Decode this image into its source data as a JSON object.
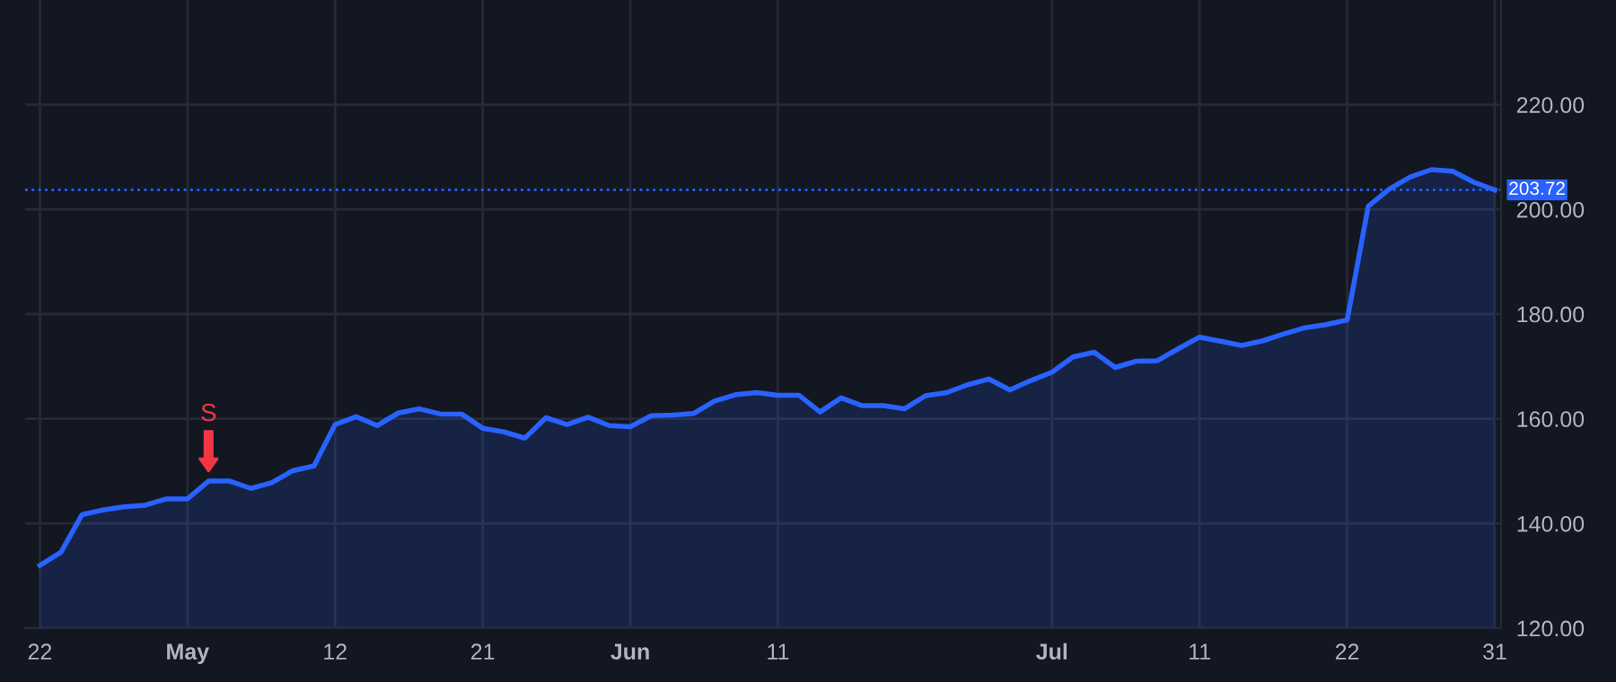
{
  "chart_data": {
    "type": "area",
    "categories": [
      "22",
      null,
      null,
      null,
      null,
      null,
      null,
      "May",
      null,
      null,
      null,
      null,
      null,
      null,
      "12",
      null,
      null,
      null,
      null,
      null,
      null,
      "21",
      null,
      null,
      null,
      null,
      null,
      null,
      "Jun",
      null,
      null,
      null,
      null,
      null,
      null,
      "11",
      null,
      null,
      null,
      null,
      null,
      null,
      null,
      null,
      null,
      null,
      null,
      null,
      "Jul",
      null,
      null,
      null,
      null,
      null,
      null,
      "11",
      null,
      null,
      null,
      null,
      null,
      null,
      "22",
      null,
      null,
      null,
      null,
      null,
      null,
      "31"
    ],
    "series": [
      {
        "color": "#2962ff",
        "values": [
          132.0,
          134.5,
          141.7,
          142.6,
          143.2,
          143.5,
          144.7,
          144.7,
          148.1,
          148.1,
          146.7,
          147.8,
          150.1,
          151.0,
          158.9,
          160.4,
          158.7,
          161.1,
          161.9,
          160.9,
          160.9,
          158.2,
          157.5,
          156.3,
          160.2,
          158.9,
          160.3,
          158.7,
          158.5,
          160.6,
          160.7,
          161.0,
          163.4,
          164.6,
          165.0,
          164.5,
          164.5,
          161.3,
          164.0,
          162.5,
          162.5,
          161.9,
          164.4,
          165.0,
          166.5,
          167.6,
          165.5,
          167.3,
          168.9,
          171.8,
          172.7,
          169.8,
          171.0,
          171.1,
          173.4,
          175.6,
          174.8,
          174.0,
          174.9,
          176.2,
          177.4,
          178.0,
          178.9,
          200.6,
          203.9,
          206.2,
          207.6,
          207.3,
          205.2,
          203.7
        ]
      }
    ],
    "ylim": [
      120,
      240
    ],
    "yticks": [
      {
        "value": 120,
        "label": "120.00"
      },
      {
        "value": 140,
        "label": "140.00"
      },
      {
        "value": 160,
        "label": "160.00"
      },
      {
        "value": 180,
        "label": "180.00"
      },
      {
        "value": 200,
        "label": "200.00"
      },
      {
        "value": 220,
        "label": "220.00"
      }
    ],
    "ref_lines": [
      {
        "axis": "y",
        "value": 203.72,
        "label": "203.72",
        "color": "#2962ff",
        "line_style": "dotted"
      }
    ],
    "annotations": [
      {
        "text": "S",
        "y": 148.1
      }
    ],
    "grid": true,
    "marker": "none",
    "line_style": "solid"
  }
}
